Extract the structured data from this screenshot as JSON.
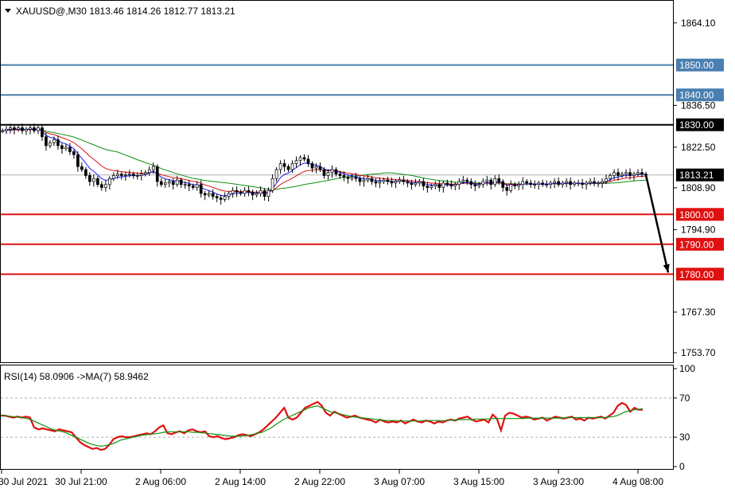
{
  "header": {
    "symbol_line": "XAUUSD@,M30  1813.46 1814.26 1812.77 1813.21"
  },
  "rsi_header": "RSI(14) 58.0906  ->MA(7) 58.9462",
  "chart_data": [
    {
      "type": "candlestick",
      "title": "XAUUSD@,M30",
      "ohlc_last": {
        "open": 1813.46,
        "high": 1814.26,
        "low": 1812.77,
        "close": 1813.21
      },
      "ylim": [
        1750.5,
        1871.5
      ],
      "price_ticks": [
        "1864.10",
        "1836.50",
        "1822.50",
        "1808.90",
        "1794.90",
        "1767.30",
        "1753.70"
      ],
      "x_tick_labels": [
        "30 Jul 2021",
        "30 Jul 21:00",
        "2 Aug 06:00",
        "2 Aug 14:00",
        "2 Aug 22:00",
        "3 Aug 07:00",
        "3 Aug 15:00",
        "3 Aug 23:00",
        "4 Aug 08:00"
      ],
      "current_price": {
        "value": 1813.21,
        "label": "1813.21"
      },
      "levels": [
        {
          "value": 1850.0,
          "label": "1850.00",
          "color": "#4a7fb0"
        },
        {
          "value": 1840.0,
          "label": "1840.00",
          "color": "#4a7fb0"
        },
        {
          "value": 1830.0,
          "label": "1830.00",
          "color": "#000000"
        },
        {
          "value": 1800.0,
          "label": "1800.00",
          "color": "#e01010"
        },
        {
          "value": 1790.0,
          "label": "1790.00",
          "color": "#e01010"
        },
        {
          "value": 1780.0,
          "label": "1780.00",
          "color": "#e01010"
        }
      ],
      "close_series": [
        1828,
        1828.5,
        1829,
        1828.5,
        1829,
        1828,
        1828.5,
        1829,
        1828,
        1829,
        1826,
        1823,
        1824,
        1825,
        1823,
        1822,
        1822.5,
        1821,
        1820,
        1816,
        1815,
        1813,
        1811,
        1812,
        1810,
        1809,
        1810,
        1812,
        1813,
        1813.5,
        1813,
        1813.2,
        1813.5,
        1813,
        1813,
        1813.5,
        1814,
        1815,
        1816,
        1811,
        1810,
        1810.5,
        1811,
        1810,
        1811.5,
        1810,
        1810,
        1809.5,
        1809,
        1810,
        1807,
        1806.5,
        1807,
        1806,
        1805.5,
        1805,
        1806,
        1807,
        1808,
        1807.5,
        1807,
        1808,
        1807.5,
        1806.5,
        1807,
        1808,
        1806,
        1808,
        1812,
        1815,
        1817,
        1816,
        1815,
        1817,
        1818,
        1819,
        1818.5,
        1817,
        1815.5,
        1816,
        1815,
        1813,
        1814,
        1815,
        1813.5,
        1813,
        1812.5,
        1812,
        1812.5,
        1812,
        1811,
        1811.5,
        1812,
        1811,
        1810.5,
        1811,
        1811.5,
        1811,
        1810.5,
        1811,
        1811.5,
        1811,
        1810.5,
        1810,
        1810.5,
        1811,
        1809.5,
        1809,
        1809.5,
        1810,
        1809,
        1810.5,
        1810,
        1809.5,
        1810,
        1811,
        1811.5,
        1811,
        1810,
        1809.5,
        1810,
        1811,
        1811.5,
        1810,
        1812,
        1811,
        1809,
        1808,
        1810,
        1809.5,
        1810,
        1811,
        1810.5,
        1810,
        1810,
        1810.5,
        1810,
        1810,
        1810.5,
        1811,
        1810,
        1810.5,
        1811,
        1810,
        1810.5,
        1810.5,
        1810,
        1810.5,
        1811,
        1810.5,
        1810.5,
        1811,
        1812,
        1813,
        1814,
        1813,
        1813.5,
        1814,
        1813,
        1813.5,
        1814,
        1813.5,
        1813.2
      ],
      "ma_fast_color": "#1a1aff",
      "ma_mid_color": "#e01010",
      "ma_slow_color": "#109010",
      "arrow": {
        "from": 1813.21,
        "to": 1780.0,
        "color": "#000000"
      }
    },
    {
      "type": "line",
      "title": "RSI(14) 58.0906  ->MA(7) 58.9462",
      "ylim": [
        0,
        100
      ],
      "y_ticks": [
        "100",
        "70",
        "30",
        "0"
      ],
      "levels": [
        70,
        30
      ],
      "series": [
        {
          "name": "RSI(14)",
          "color": "#e01010",
          "last": 58.0906,
          "values": [
            52,
            52,
            51,
            50,
            51,
            50,
            51,
            50,
            40,
            38,
            39,
            38,
            37,
            36,
            38,
            37,
            36,
            35,
            30,
            25,
            22,
            20,
            18,
            19,
            17,
            18,
            22,
            28,
            30,
            31,
            30,
            30,
            31,
            32,
            33,
            34,
            33,
            36,
            40,
            42,
            34,
            33,
            35,
            36,
            34,
            37,
            38,
            36,
            35,
            36,
            31,
            30,
            31,
            29,
            28,
            29,
            30,
            32,
            33,
            32,
            31,
            33,
            35,
            38,
            42,
            46,
            50,
            55,
            60,
            50,
            48,
            50,
            55,
            60,
            62,
            64,
            66,
            62,
            55,
            52,
            56,
            54,
            52,
            50,
            51,
            52,
            50,
            49,
            48,
            47,
            45,
            48,
            46,
            45,
            46,
            45,
            47,
            44,
            46,
            48,
            46,
            45,
            47,
            46,
            44,
            46,
            45,
            47,
            48,
            47,
            49,
            50,
            51,
            48,
            46,
            47,
            48,
            45,
            53,
            49,
            37,
            52,
            55,
            54,
            52,
            50,
            51,
            50,
            48,
            49,
            50,
            47,
            49,
            51,
            50,
            49,
            50,
            51,
            48,
            49,
            47,
            50,
            49,
            50,
            51,
            49,
            52,
            55,
            62,
            65,
            63,
            56,
            60,
            58,
            58.09
          ]
        },
        {
          "name": "MA(7)",
          "color": "#109010",
          "last": 58.9462,
          "values": [
            52,
            52,
            51.5,
            51,
            50.5,
            50,
            49,
            48,
            46,
            44,
            42,
            40,
            38,
            37,
            36,
            35,
            33,
            31,
            29,
            27,
            25,
            23,
            22,
            21,
            21,
            22,
            23,
            25,
            27,
            28,
            29,
            30,
            31,
            32,
            32.5,
            33,
            33.5,
            34,
            35,
            35.5,
            35.5,
            35.5,
            35.5,
            35.5,
            35.5,
            35,
            35,
            34.5,
            34,
            33.5,
            33,
            32.5,
            32,
            31.5,
            31,
            31,
            31,
            31.5,
            32,
            33,
            34,
            35,
            37,
            39,
            42,
            45,
            48,
            50,
            52,
            54,
            56,
            58,
            60,
            61,
            62,
            60,
            58,
            56,
            55,
            54,
            53,
            52,
            51,
            50.5,
            50,
            49.5,
            49,
            48.5,
            48,
            47.5,
            47,
            47,
            47,
            46.5,
            46.5,
            46.5,
            46.5,
            46.5,
            46.5,
            47,
            47,
            47,
            47,
            47,
            47,
            47.5,
            47.5,
            48,
            48,
            48,
            48,
            48.5,
            48.5,
            48.5,
            48.5,
            49,
            49,
            49,
            49,
            49,
            49,
            49,
            49,
            49.5,
            49.5,
            49.5,
            49.5,
            49.5,
            49.5,
            49.5,
            49.5,
            49.5,
            50,
            50,
            50,
            50,
            50,
            50,
            50,
            50,
            50,
            50,
            50.5,
            51,
            52,
            54,
            56,
            57,
            58,
            58.5,
            58.9462
          ]
        }
      ]
    }
  ]
}
